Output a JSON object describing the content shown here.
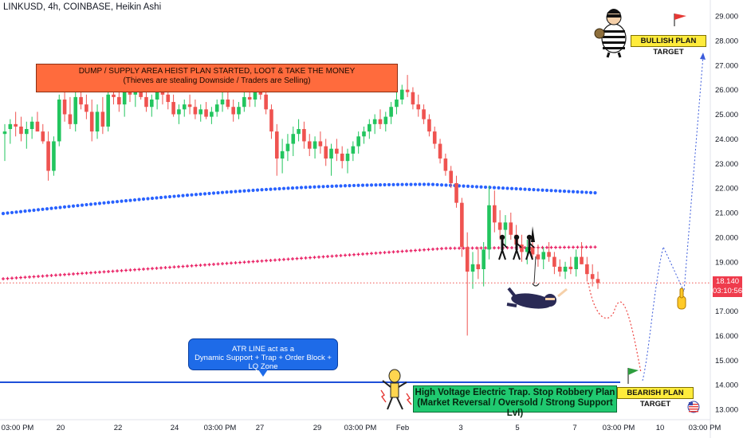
{
  "header": {
    "symbol": "LINKUSD",
    "timeframe": "4h",
    "exchange": "COINBASE",
    "chart_style": "Heikin Ashi",
    "title_text": "LINKUSD, 4h, COINBASE, Heikin Ashi"
  },
  "annotations": {
    "dump_box": {
      "line1": "DUMP / SUPPLY AREA HEIST PLAN STARTED, LOOT & TAKE THE MONEY",
      "line2": "(Thieves are stealing Downside / Traders are Selling)"
    },
    "atr_box": {
      "line1": "ATR LINE act as a",
      "line2": "Dynamic Support + Trap + Order Block + LQ Zone"
    },
    "electric_box": {
      "line1": "High Voltage Electric Trap. Stop Robbery Plan",
      "line2": "(Market Reversal / Oversold / Strong Support Lvl)"
    },
    "bullish_target": "BULLISH PLAN TARGET",
    "bearish_target": "BEARISH PLAN TARGET"
  },
  "price_tag": {
    "price": "18.140",
    "countdown": "03:10:56"
  },
  "colors": {
    "up_candle": "#26a69a",
    "up_candle_bright": "#22c55e",
    "down_candle": "#ef5350",
    "blue_ma": "#2962ff",
    "pink_ma": "#e91e63",
    "atr_line": "#1e4fd8",
    "price_tag": "#ef3b4c",
    "dump_box": "#ff6b3d",
    "atr_box": "#1e6be8",
    "electric_box": "#20c970",
    "target_box": "#ffeb3b"
  },
  "icons": [
    "thief-mascot-icon",
    "red-flag-icon",
    "green-flag-icon",
    "skeleton-shock-icon",
    "thief-hanging-icon",
    "thief-silhouettes-icon",
    "hand-pointer-icon",
    "us-flag-icon"
  ],
  "chart_data": {
    "type": "candlestick",
    "y_axis_ticks": [
      "29.000",
      "28.000",
      "27.000",
      "26.000",
      "25.000",
      "24.000",
      "23.000",
      "22.000",
      "21.000",
      "20.000",
      "19.000",
      "18.000",
      "17.000",
      "16.000",
      "15.000",
      "14.000",
      "13.000"
    ],
    "ylim": [
      12.6,
      29.3
    ],
    "x_axis_ticks": [
      "03:00 PM",
      "20",
      "22",
      "24",
      "03:00 PM",
      "27",
      "29",
      "03:00 PM",
      "Feb",
      "3",
      "5",
      "7",
      "03:00 PM",
      "10",
      "03:00 PM"
    ],
    "last_price": 18.14,
    "atr_line_level": 14.1,
    "bullish_target_level": 27.4,
    "bearish_target_level": 13.95,
    "candles": [
      {
        "o": 24.2,
        "h": 24.6,
        "l": 23.1,
        "c": 24.3
      },
      {
        "o": 24.4,
        "h": 24.8,
        "l": 23.8,
        "c": 24.6
      },
      {
        "o": 24.6,
        "h": 25.1,
        "l": 24.1,
        "c": 24.5
      },
      {
        "o": 24.5,
        "h": 24.9,
        "l": 23.9,
        "c": 24.2
      },
      {
        "o": 24.2,
        "h": 24.7,
        "l": 23.6,
        "c": 24.4
      },
      {
        "o": 24.4,
        "h": 24.9,
        "l": 24.0,
        "c": 24.7
      },
      {
        "o": 24.7,
        "h": 25.1,
        "l": 24.3,
        "c": 24.3
      },
      {
        "o": 24.3,
        "h": 24.6,
        "l": 23.8,
        "c": 23.9
      },
      {
        "o": 23.9,
        "h": 24.3,
        "l": 22.3,
        "c": 22.7
      },
      {
        "o": 22.7,
        "h": 24.1,
        "l": 22.5,
        "c": 23.9
      },
      {
        "o": 23.9,
        "h": 25.8,
        "l": 23.7,
        "c": 25.6
      },
      {
        "o": 25.6,
        "h": 26.1,
        "l": 24.7,
        "c": 25.0
      },
      {
        "o": 25.0,
        "h": 25.7,
        "l": 24.4,
        "c": 24.6
      },
      {
        "o": 24.6,
        "h": 25.9,
        "l": 24.3,
        "c": 25.7
      },
      {
        "o": 25.7,
        "h": 26.2,
        "l": 25.2,
        "c": 25.4
      },
      {
        "o": 25.4,
        "h": 25.8,
        "l": 24.8,
        "c": 25.1
      },
      {
        "o": 25.1,
        "h": 25.6,
        "l": 23.9,
        "c": 24.3
      },
      {
        "o": 24.3,
        "h": 25.4,
        "l": 24.0,
        "c": 25.1
      },
      {
        "o": 25.1,
        "h": 25.7,
        "l": 24.2,
        "c": 24.5
      },
      {
        "o": 24.5,
        "h": 25.9,
        "l": 24.3,
        "c": 25.8
      },
      {
        "o": 25.8,
        "h": 26.2,
        "l": 25.4,
        "c": 25.7
      },
      {
        "o": 25.7,
        "h": 26.0,
        "l": 25.1,
        "c": 25.4
      },
      {
        "o": 25.4,
        "h": 26.1,
        "l": 24.9,
        "c": 25.9
      },
      {
        "o": 25.9,
        "h": 26.4,
        "l": 25.5,
        "c": 25.8
      },
      {
        "o": 25.8,
        "h": 26.2,
        "l": 25.3,
        "c": 26.0
      },
      {
        "o": 26.0,
        "h": 26.5,
        "l": 25.6,
        "c": 25.7
      },
      {
        "o": 25.7,
        "h": 26.0,
        "l": 25.1,
        "c": 25.3
      },
      {
        "o": 25.3,
        "h": 25.8,
        "l": 24.9,
        "c": 25.6
      },
      {
        "o": 25.6,
        "h": 26.1,
        "l": 25.2,
        "c": 25.9
      },
      {
        "o": 25.9,
        "h": 26.3,
        "l": 25.4,
        "c": 25.8
      },
      {
        "o": 25.8,
        "h": 26.1,
        "l": 25.2,
        "c": 25.5
      },
      {
        "o": 25.5,
        "h": 25.8,
        "l": 24.9,
        "c": 25.0
      },
      {
        "o": 25.0,
        "h": 25.4,
        "l": 24.6,
        "c": 25.2
      },
      {
        "o": 25.2,
        "h": 25.6,
        "l": 24.9,
        "c": 25.4
      },
      {
        "o": 25.4,
        "h": 25.8,
        "l": 25.0,
        "c": 25.3
      },
      {
        "o": 25.3,
        "h": 25.6,
        "l": 24.8,
        "c": 25.0
      },
      {
        "o": 25.0,
        "h": 25.4,
        "l": 24.7,
        "c": 25.2
      },
      {
        "o": 25.2,
        "h": 25.5,
        "l": 24.8,
        "c": 24.9
      },
      {
        "o": 24.9,
        "h": 25.3,
        "l": 24.6,
        "c": 25.1
      },
      {
        "o": 25.1,
        "h": 25.6,
        "l": 24.9,
        "c": 25.4
      },
      {
        "o": 25.4,
        "h": 25.9,
        "l": 25.1,
        "c": 25.6
      },
      {
        "o": 25.6,
        "h": 26.0,
        "l": 25.2,
        "c": 25.3
      },
      {
        "o": 25.3,
        "h": 25.6,
        "l": 24.7,
        "c": 25.0
      },
      {
        "o": 25.0,
        "h": 25.5,
        "l": 24.8,
        "c": 25.3
      },
      {
        "o": 25.3,
        "h": 25.9,
        "l": 25.1,
        "c": 25.7
      },
      {
        "o": 25.7,
        "h": 26.1,
        "l": 25.3,
        "c": 25.6
      },
      {
        "o": 25.6,
        "h": 26.2,
        "l": 25.3,
        "c": 26.0
      },
      {
        "o": 26.0,
        "h": 26.4,
        "l": 25.6,
        "c": 25.8
      },
      {
        "o": 25.8,
        "h": 26.1,
        "l": 25.0,
        "c": 25.2
      },
      {
        "o": 25.2,
        "h": 25.4,
        "l": 24.0,
        "c": 24.3
      },
      {
        "o": 24.3,
        "h": 24.6,
        "l": 22.5,
        "c": 23.2
      },
      {
        "o": 23.2,
        "h": 24.0,
        "l": 22.6,
        "c": 23.5
      },
      {
        "o": 23.5,
        "h": 24.2,
        "l": 23.1,
        "c": 23.8
      },
      {
        "o": 23.8,
        "h": 24.5,
        "l": 23.3,
        "c": 24.2
      },
      {
        "o": 24.2,
        "h": 24.8,
        "l": 23.9,
        "c": 24.4
      },
      {
        "o": 24.4,
        "h": 24.7,
        "l": 23.6,
        "c": 23.9
      },
      {
        "o": 23.9,
        "h": 24.2,
        "l": 23.3,
        "c": 23.6
      },
      {
        "o": 23.6,
        "h": 24.1,
        "l": 23.2,
        "c": 23.9
      },
      {
        "o": 23.9,
        "h": 24.3,
        "l": 23.4,
        "c": 23.7
      },
      {
        "o": 23.7,
        "h": 24.0,
        "l": 22.9,
        "c": 23.2
      },
      {
        "o": 23.2,
        "h": 23.8,
        "l": 22.5,
        "c": 23.6
      },
      {
        "o": 23.6,
        "h": 24.0,
        "l": 23.1,
        "c": 23.4
      },
      {
        "o": 23.4,
        "h": 23.7,
        "l": 22.8,
        "c": 23.1
      },
      {
        "o": 23.1,
        "h": 23.6,
        "l": 22.6,
        "c": 23.4
      },
      {
        "o": 23.4,
        "h": 23.9,
        "l": 23.1,
        "c": 23.7
      },
      {
        "o": 23.7,
        "h": 24.3,
        "l": 23.4,
        "c": 24.1
      },
      {
        "o": 24.1,
        "h": 24.5,
        "l": 23.8,
        "c": 24.3
      },
      {
        "o": 24.3,
        "h": 24.8,
        "l": 24.0,
        "c": 24.6
      },
      {
        "o": 24.6,
        "h": 25.0,
        "l": 24.2,
        "c": 24.8
      },
      {
        "o": 24.8,
        "h": 25.2,
        "l": 24.4,
        "c": 24.6
      },
      {
        "o": 24.6,
        "h": 25.1,
        "l": 24.3,
        "c": 24.9
      },
      {
        "o": 24.9,
        "h": 25.5,
        "l": 24.6,
        "c": 25.3
      },
      {
        "o": 25.3,
        "h": 25.9,
        "l": 25.0,
        "c": 25.6
      },
      {
        "o": 25.6,
        "h": 26.2,
        "l": 25.4,
        "c": 26.0
      },
      {
        "o": 26.0,
        "h": 26.6,
        "l": 25.7,
        "c": 25.9
      },
      {
        "o": 25.9,
        "h": 26.1,
        "l": 25.2,
        "c": 25.4
      },
      {
        "o": 25.4,
        "h": 25.8,
        "l": 24.9,
        "c": 25.2
      },
      {
        "o": 25.2,
        "h": 25.4,
        "l": 24.6,
        "c": 24.8
      },
      {
        "o": 24.8,
        "h": 25.0,
        "l": 24.1,
        "c": 24.3
      },
      {
        "o": 24.3,
        "h": 24.5,
        "l": 23.6,
        "c": 23.8
      },
      {
        "o": 23.8,
        "h": 24.0,
        "l": 23.0,
        "c": 23.2
      },
      {
        "o": 23.2,
        "h": 23.4,
        "l": 22.5,
        "c": 22.7
      },
      {
        "o": 22.7,
        "h": 22.9,
        "l": 22.0,
        "c": 22.2
      },
      {
        "o": 22.2,
        "h": 22.5,
        "l": 21.2,
        "c": 21.4
      },
      {
        "o": 21.4,
        "h": 21.6,
        "l": 19.2,
        "c": 19.6
      },
      {
        "o": 19.6,
        "h": 20.2,
        "l": 16.0,
        "c": 18.6
      },
      {
        "o": 18.6,
        "h": 19.4,
        "l": 17.9,
        "c": 18.9
      },
      {
        "o": 18.9,
        "h": 19.6,
        "l": 18.3,
        "c": 18.7
      },
      {
        "o": 18.7,
        "h": 19.8,
        "l": 18.0,
        "c": 19.5
      },
      {
        "o": 19.5,
        "h": 22.1,
        "l": 19.1,
        "c": 21.3
      },
      {
        "o": 21.3,
        "h": 21.9,
        "l": 20.2,
        "c": 20.6
      },
      {
        "o": 20.6,
        "h": 21.1,
        "l": 19.9,
        "c": 20.3
      },
      {
        "o": 20.3,
        "h": 20.9,
        "l": 19.6,
        "c": 20.6
      },
      {
        "o": 20.6,
        "h": 21.0,
        "l": 19.9,
        "c": 20.1
      },
      {
        "o": 20.1,
        "h": 20.5,
        "l": 19.4,
        "c": 19.7
      },
      {
        "o": 19.7,
        "h": 20.1,
        "l": 19.0,
        "c": 19.4
      },
      {
        "o": 19.4,
        "h": 19.9,
        "l": 18.9,
        "c": 19.6
      },
      {
        "o": 19.6,
        "h": 20.0,
        "l": 19.1,
        "c": 19.3
      },
      {
        "o": 19.3,
        "h": 19.7,
        "l": 18.8,
        "c": 19.1
      },
      {
        "o": 19.1,
        "h": 19.6,
        "l": 18.7,
        "c": 19.4
      },
      {
        "o": 19.4,
        "h": 19.8,
        "l": 19.0,
        "c": 19.2
      },
      {
        "o": 19.2,
        "h": 19.4,
        "l": 18.5,
        "c": 18.8
      },
      {
        "o": 18.8,
        "h": 19.1,
        "l": 18.4,
        "c": 18.6
      },
      {
        "o": 18.6,
        "h": 19.0,
        "l": 18.3,
        "c": 18.8
      },
      {
        "o": 18.8,
        "h": 19.2,
        "l": 18.5,
        "c": 18.7
      },
      {
        "o": 18.7,
        "h": 19.5,
        "l": 18.4,
        "c": 19.2
      },
      {
        "o": 19.2,
        "h": 19.8,
        "l": 18.9,
        "c": 18.9
      },
      {
        "o": 18.9,
        "h": 19.2,
        "l": 18.2,
        "c": 18.5
      },
      {
        "o": 18.5,
        "h": 18.9,
        "l": 18.0,
        "c": 18.3
      },
      {
        "o": 18.3,
        "h": 18.6,
        "l": 17.9,
        "c": 18.14
      }
    ]
  }
}
